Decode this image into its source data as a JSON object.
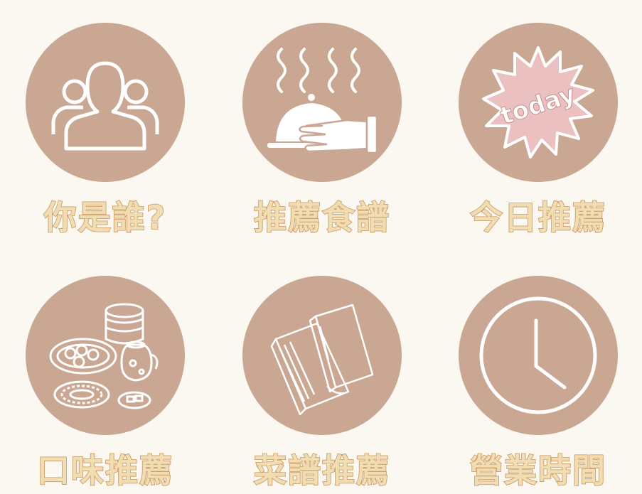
{
  "menu": {
    "items": [
      {
        "label": "你是誰?",
        "icon": "people-group-icon"
      },
      {
        "label": "推薦食譜",
        "icon": "serving-cloche-icon"
      },
      {
        "label": "今日推薦",
        "icon": "today-badge-icon",
        "badge_text": "today"
      },
      {
        "label": "口味推薦",
        "icon": "dishes-food-icon"
      },
      {
        "label": "菜譜推薦",
        "icon": "books-icon"
      },
      {
        "label": "營業時間",
        "icon": "clock-icon"
      }
    ]
  },
  "colors": {
    "background": "#fbf8f1",
    "circle": "#c9a793",
    "label_fill": "#f0ddb2",
    "label_stroke": "#c99563",
    "badge": "#eac0c0"
  }
}
